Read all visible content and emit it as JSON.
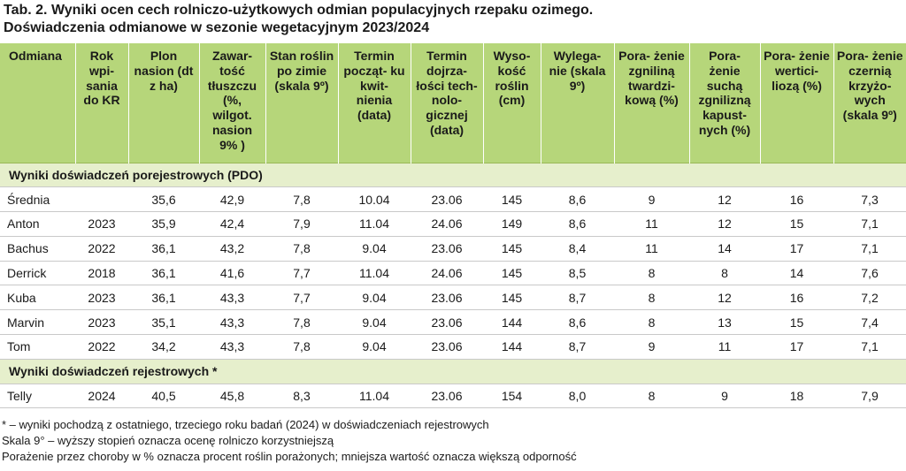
{
  "title": {
    "line1": "Tab. 2. Wyniki ocen cech rolniczo-użytkowych odmian populacyjnych rzepaku ozimego.",
    "line2": "Doświadczenia odmianowe w sezonie wegetacyjnym 2023/2024"
  },
  "headers": [
    "Odmiana",
    "Rok wpi- sania do KR",
    "Plon nasion (dt z ha)",
    "Zawar- tość tłuszczu (%, wilgot. nasion 9% )",
    "Stan roślin po zimie (skala 9º)",
    "Termin począt- ku kwit- nienia (data)",
    "Termin dojrza- łości tech- nolo- gicznej (data)",
    "Wyso- kość roślin (cm)",
    "Wylega- nie (skala 9º)",
    "Pora- żenie zgniliną twardzi- kową (%)",
    "Pora- żenie suchą zgnilizną kapust- nych (%)",
    "Pora- żenie wertici- liozą (%)",
    "Pora- żenie czernią krzyżo- wych (skala 9º)"
  ],
  "sections": [
    {
      "label": "Wyniki doświadczeń porejestrowych (PDO)",
      "rows": [
        [
          "Średnia",
          "",
          "35,6",
          "42,9",
          "7,8",
          "10.04",
          "23.06",
          "145",
          "8,6",
          "9",
          "12",
          "16",
          "7,3"
        ],
        [
          "Anton",
          "2023",
          "35,9",
          "42,4",
          "7,9",
          "11.04",
          "24.06",
          "149",
          "8,6",
          "11",
          "12",
          "15",
          "7,1"
        ],
        [
          "Bachus",
          "2022",
          "36,1",
          "43,2",
          "7,8",
          "9.04",
          "23.06",
          "145",
          "8,4",
          "11",
          "14",
          "17",
          "7,1"
        ],
        [
          "Derrick",
          "2018",
          "36,1",
          "41,6",
          "7,7",
          "11.04",
          "24.06",
          "145",
          "8,5",
          "8",
          "8",
          "14",
          "7,6"
        ],
        [
          "Kuba",
          "2023",
          "36,1",
          "43,3",
          "7,7",
          "9.04",
          "23.06",
          "145",
          "8,7",
          "8",
          "12",
          "16",
          "7,2"
        ],
        [
          "Marvin",
          "2023",
          "35,1",
          "43,3",
          "7,8",
          "9.04",
          "23.06",
          "144",
          "8,6",
          "8",
          "13",
          "15",
          "7,4"
        ],
        [
          "Tom",
          "2022",
          "34,2",
          "43,3",
          "7,8",
          "9.04",
          "23.06",
          "144",
          "8,7",
          "9",
          "11",
          "17",
          "7,1"
        ]
      ]
    },
    {
      "label": "Wyniki doświadczeń rejestrowych *",
      "rows": [
        [
          "Telly",
          "2024",
          "40,5",
          "45,8",
          "8,3",
          "11.04",
          "23.06",
          "154",
          "8,0",
          "8",
          "9",
          "18",
          "7,9"
        ]
      ]
    }
  ],
  "footnotes": [
    "* – wyniki pochodzą z ostatniego, trzeciego roku badań (2024) w doświadczeniach rejestrowych",
    "Skala 9° – wyższy stopień oznacza ocenę rolniczo korzystniejszą",
    "Porażenie przez choroby w % oznacza procent roślin porażonych; mniejsza wartość oznacza większą odporność"
  ]
}
